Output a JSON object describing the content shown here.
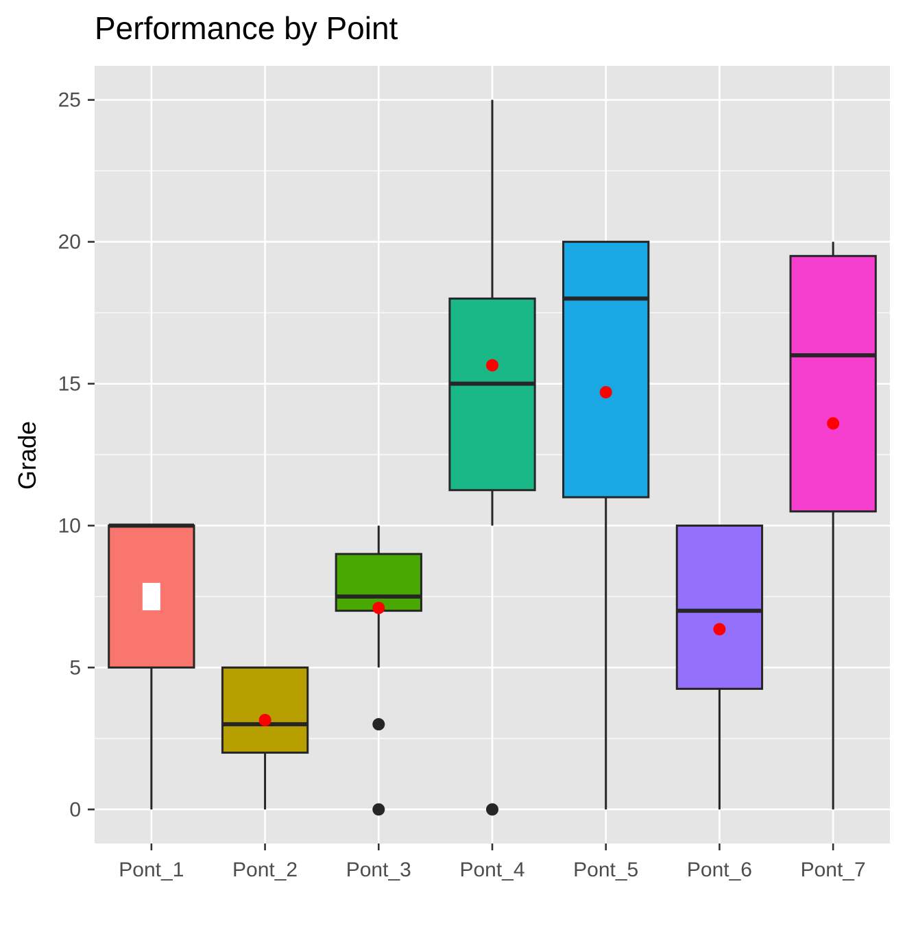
{
  "chart_data": {
    "type": "boxplot",
    "title": "Performance by Point",
    "xlabel": "",
    "ylabel": "Grade",
    "ylim": [
      -1.2,
      26.2
    ],
    "yticks": [
      0,
      5,
      10,
      15,
      20,
      25
    ],
    "grid": true,
    "legend": "none",
    "categories": [
      "Pont_1",
      "Pont_2",
      "Pont_3",
      "Pont_4",
      "Pont_5",
      "Pont_6",
      "Pont_7"
    ],
    "boxes": [
      {
        "category": "Pont_1",
        "min": 0,
        "q1": 5,
        "median": 10,
        "q3": 10,
        "max": 10,
        "mean": 7.5,
        "outliers": [],
        "color": "#F8766D"
      },
      {
        "category": "Pont_2",
        "min": 0,
        "q1": 2,
        "median": 3,
        "q3": 5,
        "max": 5,
        "mean": 3.15,
        "outliers": [],
        "color": "#B79F00"
      },
      {
        "category": "Pont_3",
        "min": 5,
        "q1": 7,
        "median": 7.5,
        "q3": 9,
        "max": 10,
        "mean": 7.1,
        "outliers": [
          3,
          0
        ],
        "color": "#4AA802"
      },
      {
        "category": "Pont_4",
        "min": 10,
        "q1": 11.25,
        "median": 15,
        "q3": 18,
        "max": 25,
        "mean": 15.65,
        "outliers": [
          0
        ],
        "color": "#1AB887"
      },
      {
        "category": "Pont_5",
        "min": 0,
        "q1": 11,
        "median": 18,
        "q3": 20,
        "max": 20,
        "mean": 14.7,
        "outliers": [],
        "color": "#19A8E3"
      },
      {
        "category": "Pont_6",
        "min": 0,
        "q1": 4.25,
        "median": 7,
        "q3": 10,
        "max": 10,
        "mean": 6.35,
        "outliers": [],
        "color": "#9471FD"
      },
      {
        "category": "Pont_7",
        "min": 0,
        "q1": 10.5,
        "median": 16,
        "q3": 19.5,
        "max": 20,
        "mean": 13.6,
        "outliers": [],
        "color": "#F63FCF"
      }
    ],
    "mean_marker_color": "#FF0000",
    "panel_background": "#E5E5E5",
    "grid_color": "#FFFFFF"
  }
}
